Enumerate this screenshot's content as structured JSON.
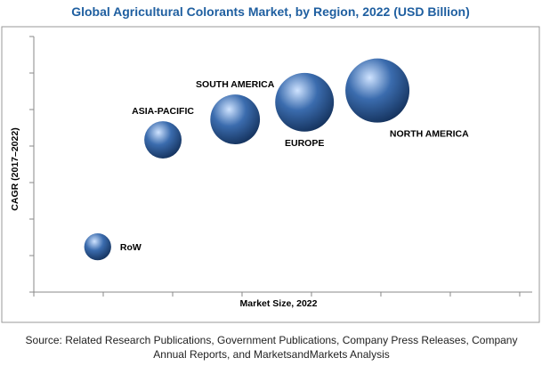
{
  "chart_data": {
    "type": "bubble",
    "title": "Global Agricultural Colorants Market, by Region, 2022 (USD Billion)",
    "x_label": "Market Size, 2022",
    "y_label": "CAGR (2017–2022)",
    "source": "Source: Related Research Publications, Government Publications, Company Press Releases, Company Annual Reports, and MarketsandMarkets Analysis",
    "categories": [
      "RoW",
      "ASIA-PACIFIC",
      "SOUTH AMERICA",
      "EUROPE",
      "NORTH AMERICA"
    ],
    "x": [
      0.92,
      1.86,
      2.9,
      3.9,
      4.95
    ],
    "values": [
      1.24,
      4.17,
      4.73,
      5.2,
      5.52
    ],
    "sizes": [
      0.23,
      0.44,
      0.78,
      1.09,
      1.3
    ],
    "color": "#3b6cae",
    "xlim": [
      0,
      7.18
    ],
    "ylim": [
      0,
      7
    ],
    "xticks": [
      0,
      1,
      2,
      3,
      4,
      5,
      6,
      7
    ],
    "yticks": [
      0,
      1,
      2,
      3,
      4,
      5,
      6,
      7
    ],
    "tick_labels": false
  }
}
